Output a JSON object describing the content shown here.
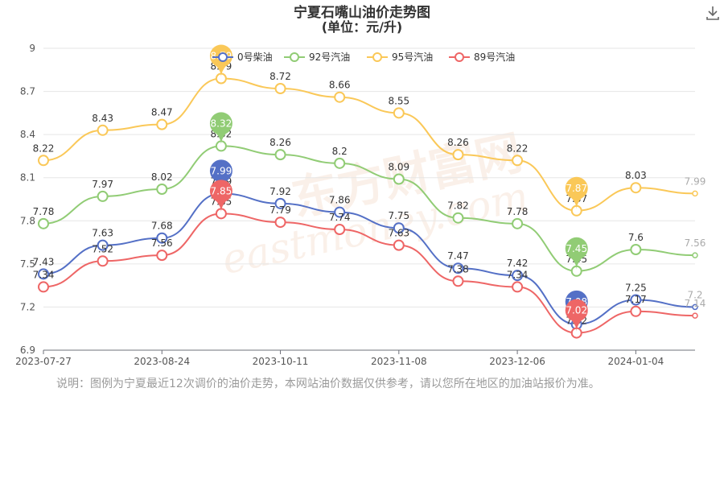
{
  "note": "说明：图例为宁夏最近12次调价的油价走势，本网站油价数据仅供参考，请以您所在地区的加油站报价为准。",
  "watermark": {
    "text_cn": "东方财富网",
    "text_en": "eastmoney.com"
  },
  "colors": {
    "0号柴油": "#5470c6",
    "92号汽油": "#91cc75",
    "95号汽油": "#fac858",
    "89号汽油": "#ee6666",
    "grid": "#e6e6e6",
    "axis_text": "#555555",
    "title": "#333333"
  },
  "chart_data": {
    "type": "line",
    "title": "宁夏石嘴山油价走势图",
    "subtitle": "(单位：元/升)",
    "x_tick_labels": [
      "2023-07-27",
      "2023-08-24",
      "2023-10-11",
      "2023-11-08",
      "2023-12-06",
      "2024-01-04"
    ],
    "y_ticks": [
      6.9,
      7.2,
      7.5,
      7.8,
      8.1,
      8.4,
      8.7,
      9
    ],
    "ylim": [
      6.9,
      9
    ],
    "grid": "horizontal",
    "legend_position": "top-right",
    "points_count": 12,
    "series": [
      {
        "name": "0号柴油",
        "values": [
          7.43,
          7.63,
          7.68,
          7.99,
          7.92,
          7.86,
          7.75,
          7.47,
          7.42,
          7.08,
          7.25,
          7.2
        ],
        "pins": [
          3,
          9
        ]
      },
      {
        "name": "92号汽油",
        "values": [
          7.78,
          7.97,
          8.02,
          8.32,
          8.26,
          8.2,
          8.09,
          7.82,
          7.78,
          7.45,
          7.6,
          7.56
        ],
        "pins": [
          3,
          9
        ]
      },
      {
        "name": "95号汽油",
        "values": [
          8.22,
          8.43,
          8.47,
          8.79,
          8.72,
          8.66,
          8.55,
          8.26,
          8.22,
          7.87,
          8.03,
          7.99
        ],
        "pins": [
          3,
          9
        ]
      },
      {
        "name": "89号汽油",
        "values": [
          7.34,
          7.52,
          7.56,
          7.85,
          7.79,
          7.74,
          7.63,
          7.38,
          7.34,
          7.02,
          7.17,
          7.14
        ],
        "pins": [
          3,
          9
        ]
      }
    ]
  }
}
